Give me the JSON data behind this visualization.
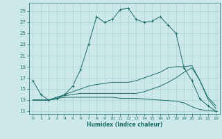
{
  "xlabel": "Humidex (Indice chaleur)",
  "bg_color": "#cce8e8",
  "grid_color": "#aad4d4",
  "line_color": "#1a6e6a",
  "xlim": [
    -0.5,
    23.5
  ],
  "ylim": [
    10.5,
    30.5
  ],
  "xticks": [
    0,
    1,
    2,
    3,
    4,
    5,
    6,
    7,
    8,
    9,
    10,
    11,
    12,
    13,
    14,
    15,
    16,
    17,
    18,
    19,
    20,
    21,
    22,
    23
  ],
  "yticks": [
    11,
    13,
    15,
    17,
    19,
    21,
    23,
    25,
    27,
    29
  ],
  "line1_x": [
    0,
    1,
    2,
    3,
    4,
    5,
    6,
    7,
    8,
    9,
    10,
    11,
    12,
    13,
    14,
    15,
    16,
    17,
    18,
    19,
    20,
    21,
    22,
    23
  ],
  "line1_y": [
    16.5,
    14.0,
    13.0,
    13.2,
    14.0,
    15.5,
    18.5,
    23.0,
    28.0,
    27.0,
    27.5,
    29.3,
    29.5,
    27.5,
    27.0,
    27.2,
    28.0,
    26.5,
    25.0,
    18.8,
    16.5,
    13.2,
    12.0,
    11.0
  ],
  "line2_x": [
    0,
    2,
    3,
    4,
    5,
    6,
    7,
    8,
    9,
    10,
    11,
    12,
    13,
    14,
    15,
    16,
    17,
    18,
    19,
    20,
    21,
    22,
    23
  ],
  "line2_y": [
    13.0,
    13.0,
    13.3,
    13.5,
    13.5,
    13.5,
    13.5,
    13.5,
    13.5,
    13.5,
    13.3,
    13.3,
    13.3,
    13.2,
    13.1,
    13.0,
    12.9,
    12.8,
    12.5,
    11.8,
    11.3,
    11.1,
    11.0
  ],
  "line3_x": [
    0,
    2,
    3,
    4,
    5,
    6,
    7,
    8,
    9,
    10,
    11,
    12,
    13,
    14,
    15,
    16,
    17,
    18,
    19,
    20,
    21,
    22,
    23
  ],
  "line3_y": [
    13.0,
    13.0,
    13.5,
    13.8,
    14.0,
    14.2,
    14.2,
    14.2,
    14.2,
    14.2,
    14.2,
    14.2,
    14.2,
    14.5,
    15.0,
    15.5,
    16.2,
    17.0,
    18.0,
    18.8,
    16.5,
    13.2,
    11.5
  ],
  "line4_x": [
    0,
    2,
    3,
    4,
    5,
    6,
    7,
    8,
    9,
    10,
    11,
    12,
    13,
    14,
    15,
    16,
    17,
    18,
    19,
    20,
    21,
    22,
    23
  ],
  "line4_y": [
    13.0,
    13.0,
    13.5,
    14.0,
    14.5,
    15.0,
    15.5,
    15.8,
    16.0,
    16.2,
    16.2,
    16.2,
    16.5,
    17.0,
    17.5,
    18.0,
    18.8,
    19.0,
    19.0,
    19.2,
    16.5,
    13.5,
    12.0
  ]
}
